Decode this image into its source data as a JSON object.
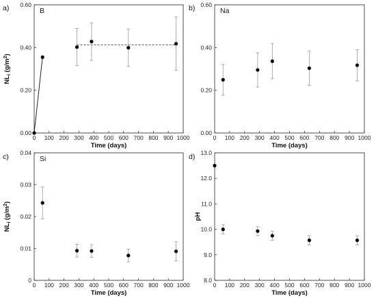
{
  "chart_data": [
    {
      "type": "scatter",
      "panel": "a)",
      "element": "B",
      "xlabel": "Time (days)",
      "ylabel": {
        "pre": "NL",
        "sub": "i",
        "mid": " (g/m",
        "sup": "2",
        "post": ")"
      },
      "xlim": [
        0,
        1000
      ],
      "ylim": [
        0,
        0.6
      ],
      "xticks": [
        0,
        100,
        200,
        300,
        400,
        500,
        600,
        700,
        800,
        900,
        1000
      ],
      "yticks": [
        "0.00",
        "0.20",
        "0.40",
        "0.60"
      ],
      "points": [
        {
          "x": 0,
          "y": 0.0,
          "err": 0
        },
        {
          "x": 56,
          "y": 0.355,
          "err": 0
        },
        {
          "x": 287,
          "y": 0.402,
          "err": 0.087
        },
        {
          "x": 385,
          "y": 0.428,
          "err": 0.088
        },
        {
          "x": 632,
          "y": 0.399,
          "err": 0.087
        },
        {
          "x": 952,
          "y": 0.418,
          "err": 0.125
        }
      ],
      "solid_line": [
        [
          0,
          0.0
        ],
        [
          56,
          0.355
        ]
      ],
      "dashed_line": [
        [
          287,
          0.412
        ],
        [
          952,
          0.412
        ]
      ]
    },
    {
      "type": "scatter",
      "panel": "b)",
      "element": "Na",
      "xlabel": "Time (days)",
      "ylabel": null,
      "xlim": [
        0,
        1000
      ],
      "ylim": [
        0,
        0.6
      ],
      "xticks": [
        0,
        100,
        200,
        300,
        400,
        500,
        600,
        700,
        800,
        900,
        1000
      ],
      "yticks": [
        "0.00",
        "0.20",
        "0.40",
        "0.60"
      ],
      "points": [
        {
          "x": 56,
          "y": 0.249,
          "err": 0.072
        },
        {
          "x": 287,
          "y": 0.295,
          "err": 0.08
        },
        {
          "x": 385,
          "y": 0.336,
          "err": 0.082
        },
        {
          "x": 632,
          "y": 0.303,
          "err": 0.08
        },
        {
          "x": 952,
          "y": 0.317,
          "err": 0.073
        }
      ]
    },
    {
      "type": "scatter",
      "panel": "c)",
      "element": "Si",
      "xlabel": "Time (days)",
      "ylabel": {
        "pre": "NL",
        "sub": "i",
        "mid": " (g/m",
        "sup": "2",
        "post": ")"
      },
      "xlim": [
        0,
        1000
      ],
      "ylim": [
        0,
        0.04
      ],
      "xticks": [
        0,
        100,
        200,
        300,
        400,
        500,
        600,
        700,
        800,
        900,
        1000
      ],
      "yticks": [
        "0",
        "0.01",
        "0.02",
        "0.03",
        "0.04"
      ],
      "points": [
        {
          "x": 56,
          "y": 0.0243,
          "err": 0.005
        },
        {
          "x": 287,
          "y": 0.0093,
          "err": 0.002
        },
        {
          "x": 385,
          "y": 0.0092,
          "err": 0.002
        },
        {
          "x": 632,
          "y": 0.0078,
          "err": 0.002
        },
        {
          "x": 952,
          "y": 0.0091,
          "err": 0.003
        }
      ]
    },
    {
      "type": "scatter",
      "panel": "d)",
      "element": "",
      "xlabel": "Time (days)",
      "ylabel": {
        "pre": "pH",
        "sub": "",
        "mid": "",
        "sup": "",
        "post": ""
      },
      "xlim": [
        0,
        1000
      ],
      "ylim": [
        8,
        13
      ],
      "xticks": [
        0,
        100,
        200,
        300,
        400,
        500,
        600,
        700,
        800,
        900,
        1000
      ],
      "yticks": [
        "8.0",
        "9.0",
        "10.0",
        "11.0",
        "12.0",
        "13.0"
      ],
      "points": [
        {
          "x": 0,
          "y": 12.5,
          "err": 0
        },
        {
          "x": 56,
          "y": 10.0,
          "err": 0.18
        },
        {
          "x": 287,
          "y": 9.93,
          "err": 0.18
        },
        {
          "x": 385,
          "y": 9.75,
          "err": 0.18
        },
        {
          "x": 632,
          "y": 9.57,
          "err": 0.18
        },
        {
          "x": 952,
          "y": 9.57,
          "err": 0.18
        }
      ]
    }
  ]
}
